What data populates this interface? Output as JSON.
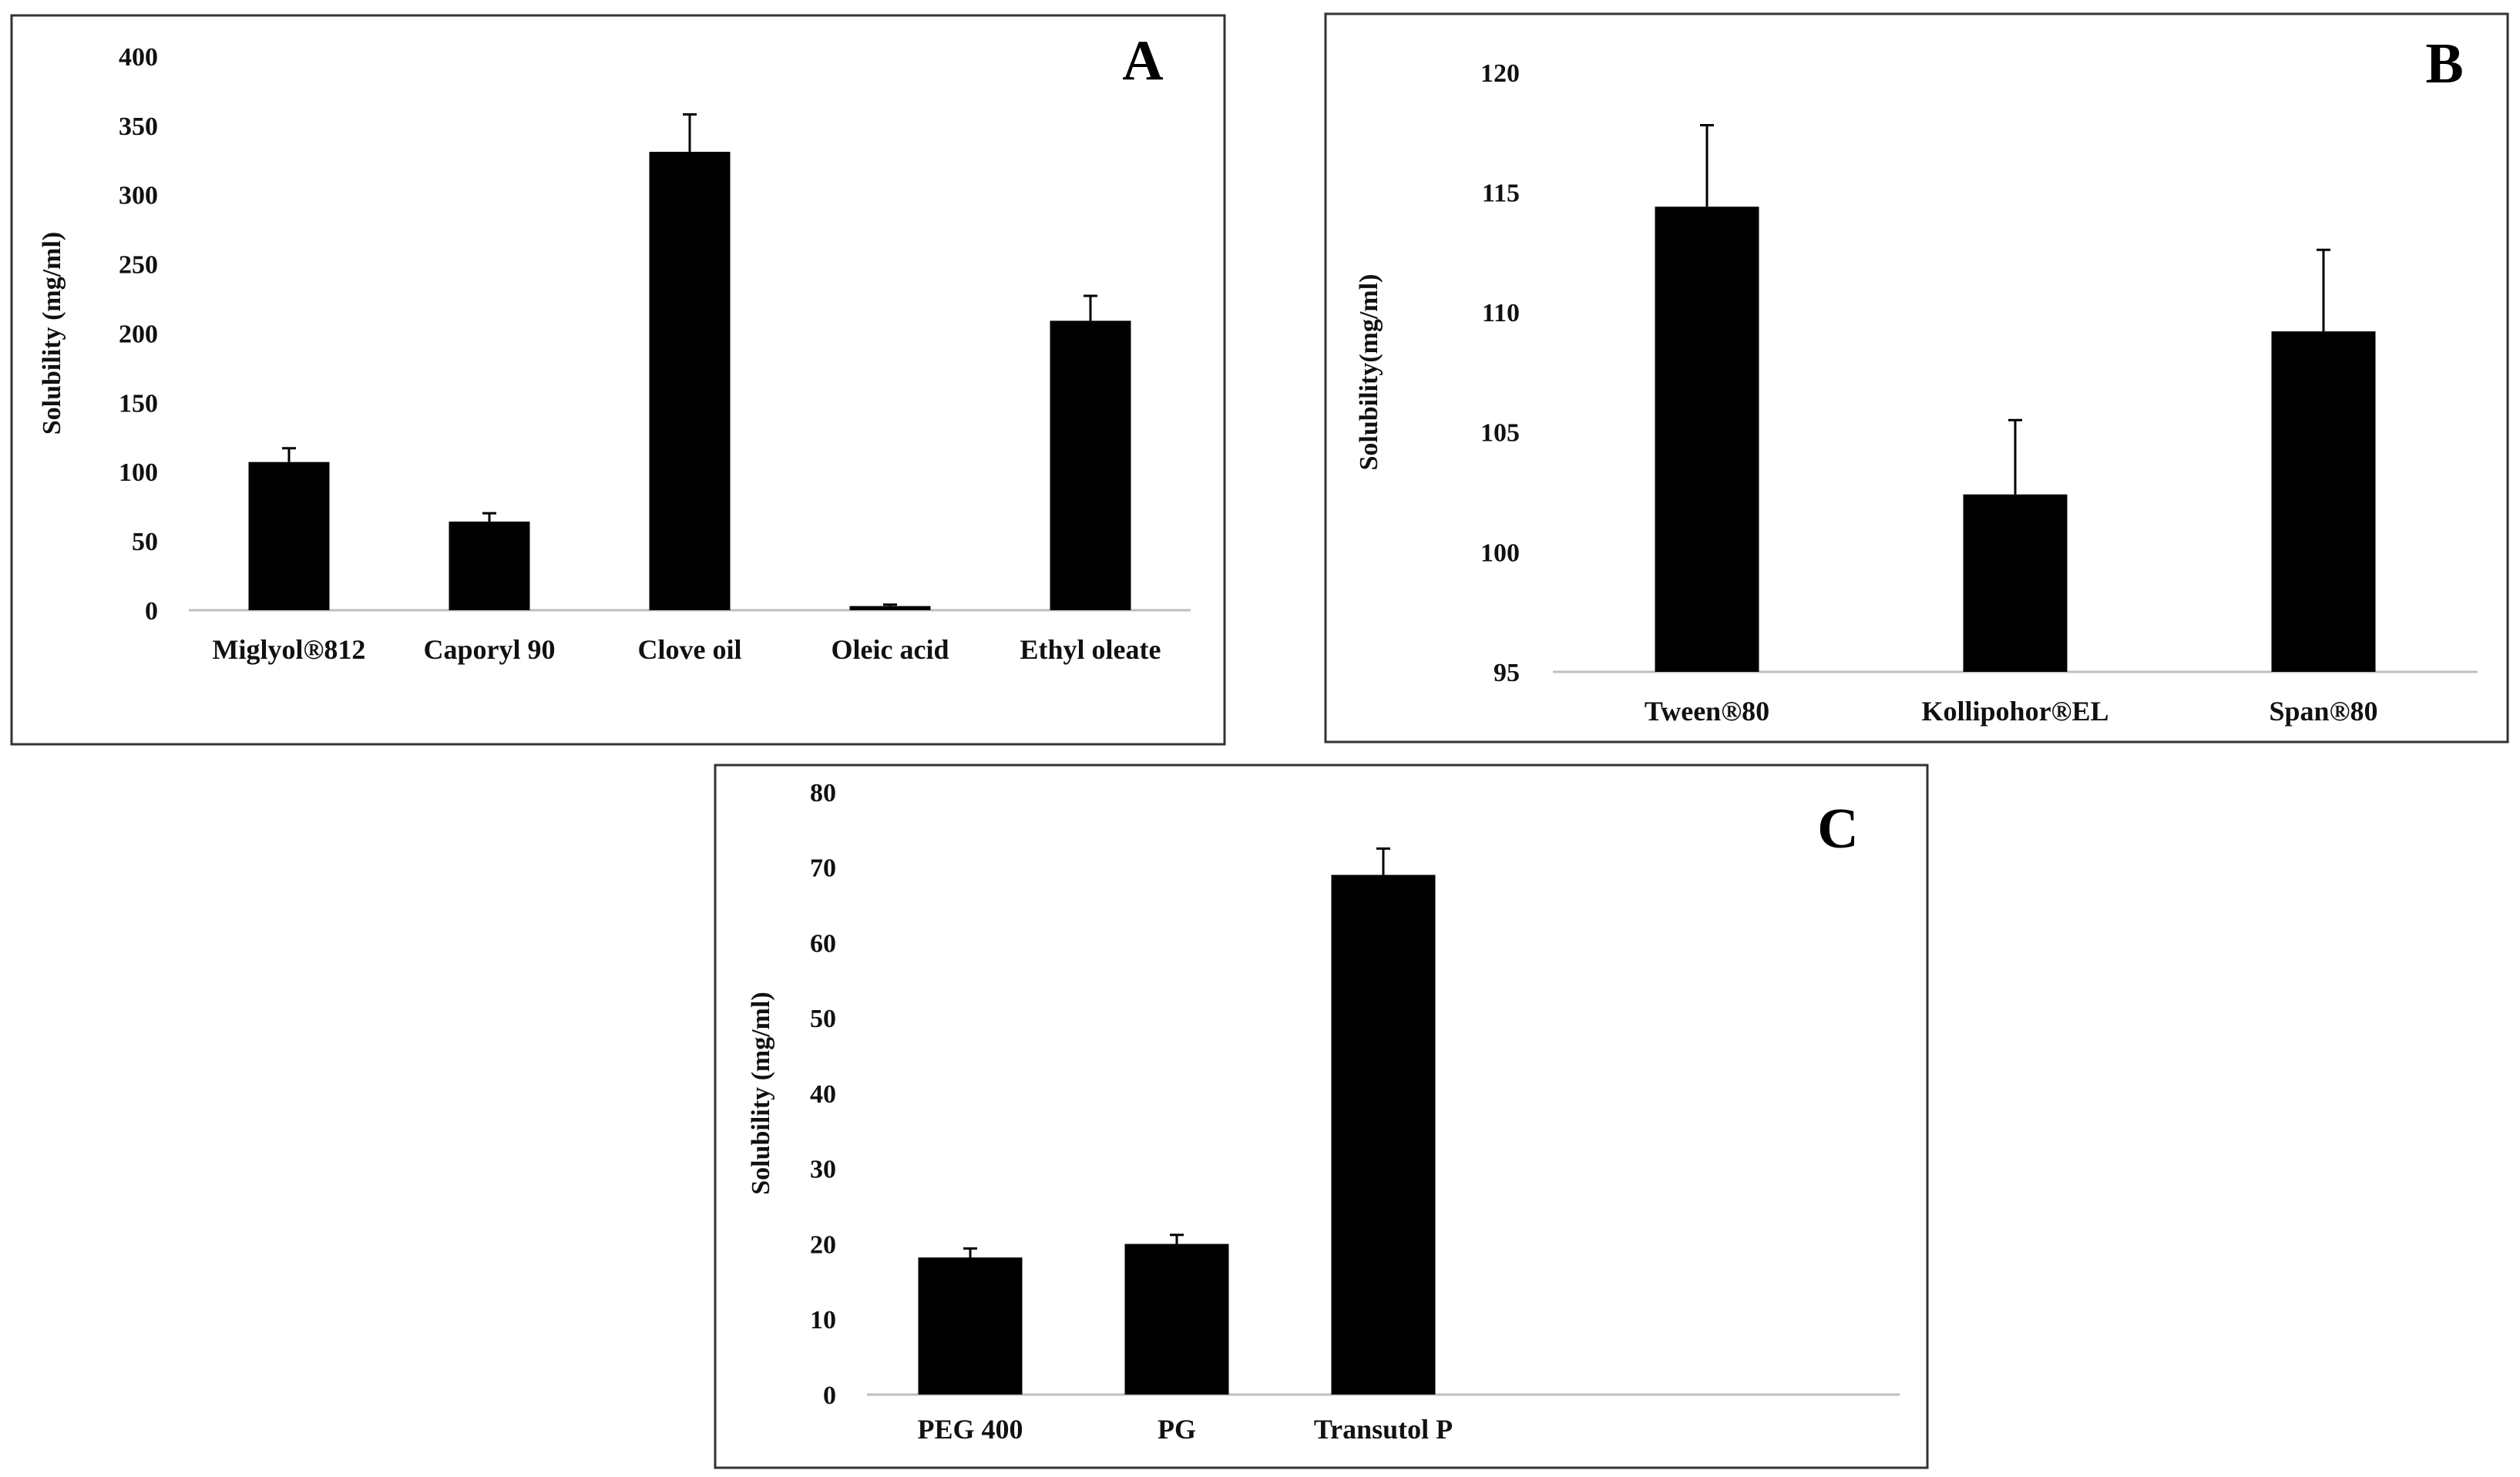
{
  "figure": {
    "colors": {
      "bar": "#000000",
      "frame": "#333333",
      "axis": "#bfbfbf",
      "text": "#111111"
    }
  },
  "chart_data": [
    {
      "panel": "A",
      "type": "bar",
      "title": "",
      "xlabel": "",
      "ylabel": "Solubility  (mg/ml)",
      "categories": [
        "Miglyol®812",
        "Caporyl 90",
        "Clove oil",
        "Oleic acid",
        "Ethyl oleate"
      ],
      "values": [
        107,
        64,
        331,
        3,
        209
      ],
      "errors": [
        10,
        6,
        27,
        1,
        18
      ],
      "ylim": [
        0,
        400
      ],
      "yticks": [
        "0",
        "50",
        "100",
        "150",
        "200",
        "250",
        "300",
        "350",
        "400"
      ],
      "grid": false
    },
    {
      "panel": "B",
      "type": "bar",
      "title": "",
      "xlabel": "",
      "ylabel": "Solubility(mg/ml)",
      "categories": [
        "Tween®80",
        "Kollipohor®EL",
        "Span®80"
      ],
      "values": [
        114.4,
        102.4,
        109.2
      ],
      "errors": [
        3.4,
        3.1,
        3.4
      ],
      "ylim": [
        95,
        120
      ],
      "yticks": [
        "95",
        "100",
        "105",
        "110",
        "115",
        "120"
      ],
      "grid": false
    },
    {
      "panel": "C",
      "type": "bar",
      "title": "",
      "xlabel": "",
      "ylabel": "Solubility  (mg/ml)",
      "categories": [
        "PEG 400",
        "PG",
        "Transutol P"
      ],
      "values": [
        18.2,
        20,
        69
      ],
      "errors": [
        1.2,
        1.2,
        3.5
      ],
      "ylim": [
        0,
        80
      ],
      "yticks": [
        "0",
        "10",
        "20",
        "30",
        "40",
        "50",
        "60",
        "70",
        "80"
      ],
      "grid": false
    }
  ]
}
